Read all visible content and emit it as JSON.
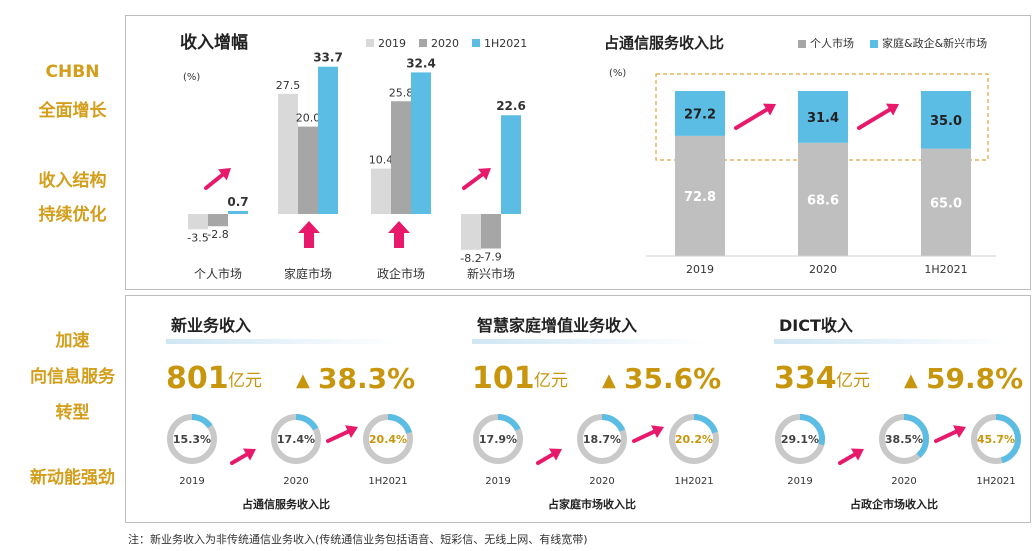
{
  "sidebar": {
    "chbn": "CHBN",
    "full_growth": "全面增长",
    "structure": "收入结构",
    "optimize": "持续优化",
    "accelerate": "加速",
    "to_info": "向信息服务",
    "transform": "转型",
    "new_momentum": "新动能强劲"
  },
  "colors": {
    "c2019": "#d9d9d9",
    "c2020": "#a6a6a6",
    "c1h2021": "#5bbde4",
    "gold": "#c8960c",
    "arrow": "#e8186b"
  },
  "chart_data": [
    {
      "type": "bar",
      "title": "收入增幅",
      "unit_label": "(%)",
      "categories": [
        "个人市场",
        "家庭市场",
        "政企市场",
        "新兴市场"
      ],
      "series": [
        {
          "name": "2019",
          "values": [
            -3.5,
            27.5,
            10.4,
            -8.2
          ]
        },
        {
          "name": "2020",
          "values": [
            -2.8,
            20.0,
            25.8,
            -7.9
          ]
        },
        {
          "name": "1H2021",
          "values": [
            0.7,
            33.7,
            32.4,
            22.6
          ]
        }
      ],
      "value_labels": [
        [
          "-3.5",
          "27.5",
          "10.4",
          "-8.2"
        ],
        [
          "-2.8",
          "20.0",
          "25.8",
          "-7.9"
        ],
        [
          "0.7",
          "33.7",
          "32.4",
          "22.6"
        ]
      ],
      "legend_position": "top-right"
    },
    {
      "type": "bar",
      "stacked": true,
      "title": "占通信服务收入比",
      "unit_label": "(%)",
      "categories": [
        "2019",
        "2020",
        "1H2021"
      ],
      "series": [
        {
          "name": "个人市场",
          "values": [
            72.8,
            68.6,
            65.0
          ],
          "labels": [
            "72.8",
            "68.6",
            "65.0"
          ]
        },
        {
          "name": "家庭&政企&新兴市场",
          "values": [
            27.2,
            31.4,
            35.0
          ],
          "labels": [
            "27.2",
            "31.4",
            "35.0"
          ]
        }
      ],
      "legend_position": "top-right"
    }
  ],
  "metrics": [
    {
      "title": "新业务收入",
      "value": "801",
      "unit": "亿元",
      "growth": "38.3%",
      "rings": [
        {
          "label": "15.3%",
          "pct": 15.3,
          "year": "2019"
        },
        {
          "label": "17.4%",
          "pct": 17.4,
          "year": "2020"
        },
        {
          "label": "20.4%",
          "pct": 20.4,
          "year": "1H2021"
        }
      ],
      "caption": "占通信服务收入比"
    },
    {
      "title": "智慧家庭增值业务收入",
      "value": "101",
      "unit": "亿元",
      "growth": "35.6%",
      "rings": [
        {
          "label": "17.9%",
          "pct": 17.9,
          "year": "2019"
        },
        {
          "label": "18.7%",
          "pct": 18.7,
          "year": "2020"
        },
        {
          "label": "20.2%",
          "pct": 20.2,
          "year": "1H2021"
        }
      ],
      "caption": "占家庭市场收入比"
    },
    {
      "title": "DICT收入",
      "value": "334",
      "unit": "亿元",
      "growth": "59.8%",
      "rings": [
        {
          "label": "29.1%",
          "pct": 29.1,
          "year": "2019"
        },
        {
          "label": "38.5%",
          "pct": 38.5,
          "year": "2020"
        },
        {
          "label": "45.7%",
          "pct": 45.7,
          "year": "1H2021"
        }
      ],
      "caption": "占政企市场收入比"
    }
  ],
  "triangle": "▲",
  "footnote": "注：新业务收入为非传统通信业务收入(传统通信业务包括语音、短彩信、无线上网、有线宽带)"
}
